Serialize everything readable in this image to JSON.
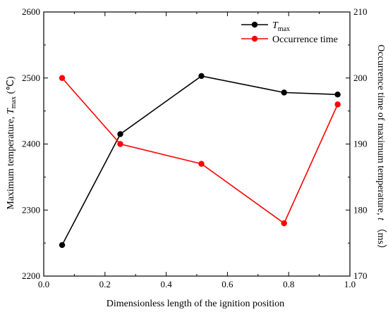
{
  "chart_data": {
    "type": "line",
    "x": [
      0.06,
      0.25,
      0.515,
      0.785,
      0.96
    ],
    "series": [
      {
        "name": "T",
        "name_subscript": "max",
        "axis": "left",
        "color": "#000000",
        "values": [
          2247,
          2415,
          2503,
          2478,
          2475
        ]
      },
      {
        "name": "Occurrence time",
        "axis": "right",
        "color": "#ff0000",
        "values": [
          200,
          190,
          187,
          178,
          196
        ]
      }
    ],
    "xlabel": "Dimensionless length of the ignition position",
    "ylabel_left": {
      "main": "Maximum temperature, ",
      "italic": "T",
      "sub": "max",
      "unit": " (℃)"
    },
    "ylabel_right": {
      "main": "Occurrence time of maximum temperature, ",
      "italic": "t",
      "unit": " （ms）"
    },
    "xlim": [
      0.0,
      1.0
    ],
    "ylim_left": [
      2200,
      2600
    ],
    "ylim_right": [
      170,
      210
    ],
    "xticks": [
      "0.0",
      "0.2",
      "0.4",
      "0.6",
      "0.8",
      "1.0"
    ],
    "yticks_left": [
      "2200",
      "2300",
      "2400",
      "2500",
      "2600"
    ],
    "yticks_right": [
      "170",
      "180",
      "190",
      "200",
      "210"
    ],
    "grid": false,
    "legend_position": "top-right"
  }
}
